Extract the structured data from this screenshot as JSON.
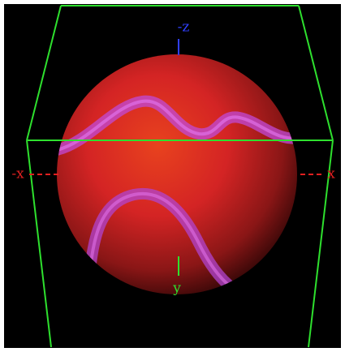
{
  "axes": {
    "neg_z": "-z",
    "neg_x": "-x",
    "pos_x": "x",
    "pos_y": "y"
  }
}
